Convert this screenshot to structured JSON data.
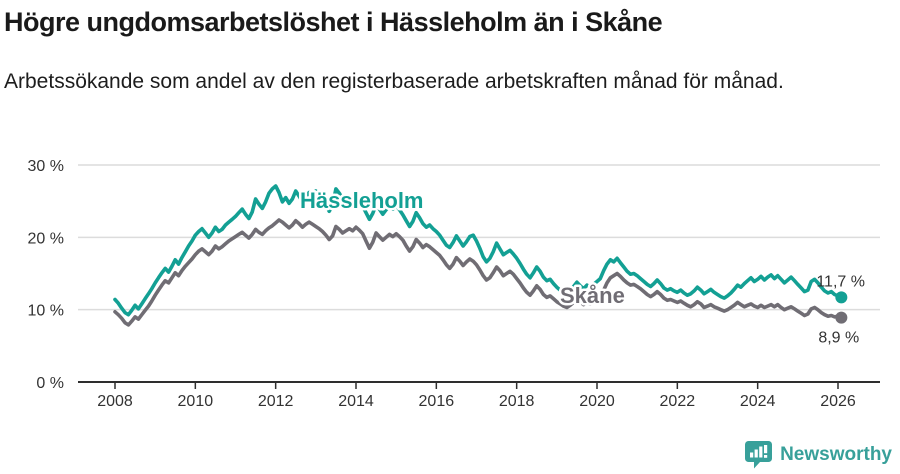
{
  "header": {
    "title": "Högre ungdomsarbetslöshet i Hässleholm än i Skåne",
    "subtitle": "Arbetssökande som andel av den registerbaserade arbetskraften månad för månad."
  },
  "chart_data": {
    "type": "line",
    "title": "Högre ungdomsarbetslöshet i Hässleholm än i Skåne",
    "xlabel": "",
    "ylabel": "",
    "unit": "%",
    "frequency": "monthly",
    "x_start": "2008-01",
    "x_end": "2026-02",
    "ylim": [
      0,
      31
    ],
    "grid": "horizontal",
    "legend_position": "inline-labels-on-lines",
    "y_ticks": [
      0,
      10,
      20,
      30
    ],
    "y_tick_labels": [
      "0 %",
      "10 %",
      "20 %",
      "30 %"
    ],
    "x_tick_years": [
      2008,
      2010,
      2012,
      2014,
      2016,
      2018,
      2020,
      2022,
      2024,
      2026
    ],
    "x_tick_labels": [
      "2008",
      "2010",
      "2012",
      "2014",
      "2016",
      "2018",
      "2020",
      "2022",
      "2024",
      "2026"
    ],
    "series": [
      {
        "name": "Hässleholm",
        "color": "#13a094",
        "end_label": "11,7 %",
        "end_value": 11.7,
        "values": [
          11.4,
          10.9,
          10.2,
          9.6,
          9.3,
          9.9,
          10.6,
          10.1,
          10.8,
          11.5,
          12.2,
          12.9,
          13.7,
          14.4,
          15.1,
          15.7,
          15.2,
          16.0,
          16.9,
          16.3,
          17.2,
          18.0,
          18.8,
          19.5,
          20.3,
          20.8,
          21.2,
          20.6,
          20.0,
          20.6,
          21.4,
          20.8,
          21.1,
          21.7,
          22.1,
          22.5,
          22.9,
          23.4,
          23.9,
          23.2,
          22.6,
          23.5,
          25.3,
          24.6,
          24.0,
          24.9,
          26.1,
          26.7,
          27.1,
          26.2,
          24.9,
          25.5,
          24.7,
          25.3,
          26.4,
          25.7,
          24.9,
          25.6,
          26.2,
          25.8,
          26.4,
          25.9,
          25.3,
          24.5,
          23.6,
          24.4,
          26.7,
          26.1,
          25.3,
          24.6,
          25.2,
          24.8,
          25.4,
          24.9,
          24.3,
          23.4,
          22.5,
          23.3,
          24.5,
          23.9,
          23.2,
          23.8,
          24.3,
          23.9,
          24.4,
          23.8,
          23.1,
          22.3,
          21.5,
          22.2,
          23.4,
          22.7,
          21.9,
          21.4,
          21.7,
          21.2,
          20.8,
          20.3,
          19.6,
          18.9,
          18.6,
          19.3,
          20.2,
          19.5,
          18.8,
          19.4,
          20.1,
          20.3,
          19.5,
          18.5,
          17.3,
          16.6,
          17.1,
          18.0,
          19.2,
          18.4,
          17.6,
          17.9,
          18.2,
          17.7,
          17.1,
          16.4,
          15.6,
          14.9,
          14.4,
          15.1,
          15.9,
          15.3,
          14.5,
          14.0,
          14.2,
          13.6,
          13.1,
          12.7,
          12.3,
          12.1,
          12.6,
          13.2,
          13.8,
          13.3,
          12.9,
          13.4,
          13.1,
          13.5,
          13.9,
          14.3,
          15.4,
          16.3,
          16.9,
          16.6,
          17.1,
          16.5,
          15.9,
          15.3,
          14.9,
          15.0,
          14.7,
          14.3,
          13.9,
          13.5,
          13.2,
          13.6,
          14.1,
          13.6,
          13.0,
          12.7,
          12.9,
          12.6,
          12.4,
          12.7,
          12.3,
          12.0,
          12.2,
          12.6,
          13.1,
          12.7,
          12.2,
          12.5,
          12.8,
          12.4,
          12.1,
          11.8,
          11.6,
          11.9,
          12.3,
          12.8,
          13.4,
          13.1,
          13.6,
          14.0,
          14.4,
          13.9,
          14.2,
          14.6,
          14.1,
          14.5,
          14.8,
          14.3,
          14.7,
          14.2,
          13.7,
          14.1,
          14.5,
          14.0,
          13.5,
          13.0,
          12.5,
          12.7,
          13.9,
          14.2,
          13.7,
          13.1,
          12.6,
          12.3,
          12.5,
          12.1,
          11.9,
          11.7
        ]
      },
      {
        "name": "Skåne",
        "color": "#706d74",
        "end_label": "8,9 %",
        "end_value": 8.9,
        "values": [
          9.7,
          9.3,
          8.8,
          8.2,
          7.9,
          8.4,
          9.0,
          8.7,
          9.3,
          9.9,
          10.5,
          11.2,
          12.0,
          12.7,
          13.4,
          14.0,
          13.7,
          14.4,
          15.1,
          14.7,
          15.4,
          16.0,
          16.5,
          17.0,
          17.6,
          18.1,
          18.4,
          18.0,
          17.6,
          18.1,
          18.8,
          18.4,
          18.7,
          19.1,
          19.5,
          19.8,
          20.1,
          20.4,
          20.7,
          20.3,
          19.9,
          20.4,
          21.1,
          20.7,
          20.4,
          20.9,
          21.3,
          21.6,
          22.0,
          22.4,
          22.1,
          21.7,
          21.3,
          21.7,
          22.3,
          21.9,
          21.4,
          21.8,
          22.1,
          21.8,
          21.5,
          21.2,
          20.8,
          20.3,
          19.7,
          20.2,
          21.5,
          21.1,
          20.6,
          20.9,
          21.2,
          20.9,
          21.4,
          21.0,
          20.5,
          19.5,
          18.5,
          19.3,
          20.6,
          20.1,
          19.6,
          20.0,
          20.4,
          20.1,
          20.5,
          20.1,
          19.6,
          18.8,
          18.1,
          18.7,
          19.7,
          19.2,
          18.6,
          19.0,
          18.7,
          18.3,
          17.9,
          17.5,
          16.9,
          16.2,
          15.7,
          16.3,
          17.2,
          16.7,
          16.1,
          16.6,
          17.0,
          16.7,
          16.2,
          15.5,
          14.7,
          14.1,
          14.4,
          15.1,
          15.9,
          15.4,
          14.7,
          15.0,
          15.3,
          14.9,
          14.3,
          13.7,
          13.0,
          12.4,
          12.0,
          12.6,
          13.3,
          12.8,
          12.1,
          11.7,
          11.9,
          11.5,
          11.1,
          10.8,
          10.5,
          10.3,
          10.6,
          11.0,
          11.5,
          11.1,
          10.7,
          11.0,
          10.8,
          11.0,
          11.3,
          11.7,
          12.7,
          13.7,
          14.4,
          14.7,
          15.0,
          14.6,
          14.1,
          13.7,
          13.4,
          13.5,
          13.2,
          12.9,
          12.5,
          12.1,
          11.8,
          12.1,
          12.5,
          12.1,
          11.6,
          11.3,
          11.4,
          11.2,
          11.0,
          11.2,
          10.9,
          10.6,
          10.4,
          10.7,
          11.1,
          10.8,
          10.3,
          10.5,
          10.7,
          10.4,
          10.2,
          10.0,
          9.8,
          10.0,
          10.3,
          10.6,
          11.0,
          10.7,
          10.4,
          10.6,
          10.8,
          10.5,
          10.3,
          10.6,
          10.3,
          10.5,
          10.7,
          10.4,
          10.7,
          10.3,
          10.0,
          10.2,
          10.4,
          10.1,
          9.8,
          9.5,
          9.2,
          9.4,
          10.1,
          10.3,
          10.0,
          9.6,
          9.3,
          9.1,
          9.2,
          9.0,
          9.1,
          8.9
        ]
      }
    ]
  },
  "footer": {
    "brand": "Newsworthy",
    "brand_color": "#38a09a",
    "brand_icon": "newsworthy-chart-bubble-icon"
  }
}
